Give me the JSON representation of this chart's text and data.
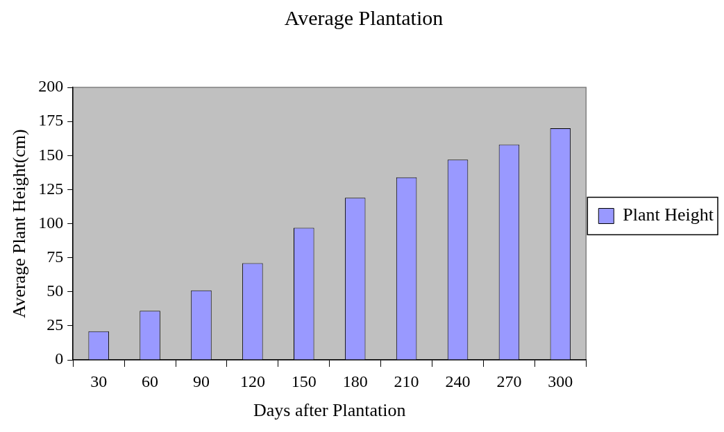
{
  "chart_data": {
    "type": "bar",
    "title": "Average Plantation",
    "xlabel": "Days after Plantation",
    "ylabel": "Average Plant Height(cm)",
    "categories": [
      "30",
      "60",
      "90",
      "120",
      "150",
      "180",
      "210",
      "240",
      "270",
      "300"
    ],
    "series": [
      {
        "name": "Plant Height",
        "color": "#9999ff",
        "values": [
          21,
          36,
          51,
          71,
          97,
          119,
          134,
          147,
          158,
          170
        ]
      }
    ],
    "ylim": [
      0,
      200
    ],
    "yticks": [
      0,
      25,
      50,
      75,
      100,
      125,
      150,
      175,
      200
    ],
    "grid": false,
    "legend": "right"
  }
}
